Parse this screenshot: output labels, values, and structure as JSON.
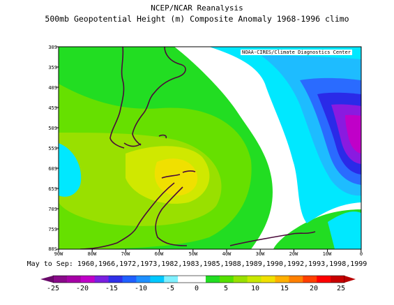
{
  "header": {
    "title": "NCEP/NCAR Reanalysis",
    "subtitle": "500mb Geopotential Height (m) Composite Anomaly 1968-1996 climo"
  },
  "credit": "NOAA-CIRES/Climate Diagnostics Center",
  "map": {
    "region": "South America / Antarctic Peninsula",
    "lat_labels": [
      "30S",
      "35S",
      "40S",
      "45S",
      "50S",
      "55S",
      "60S",
      "65S",
      "70S",
      "75S",
      "80S"
    ],
    "lon_labels": [
      "90W",
      "80W",
      "70W",
      "60W",
      "50W",
      "40W",
      "30W",
      "20W",
      "10W",
      "0"
    ]
  },
  "caption": "May to Sep: 1960,1966,1972,1973,1982,1983,1985,1988,1989,1990,1992,1993,1998,1999",
  "colorbar": {
    "labels": [
      "-25",
      "-20",
      "-15",
      "-10",
      "-5",
      "0",
      "5",
      "10",
      "15",
      "20",
      "25"
    ],
    "colors": [
      "#8a0a8a",
      "#a600a6",
      "#c000c8",
      "#7a20e0",
      "#3030e8",
      "#2060ff",
      "#1e90ff",
      "#00c8ff",
      "#80f0ff",
      "#ffffff",
      "#ffffff",
      "#22dd22",
      "#55e000",
      "#99e000",
      "#c8e800",
      "#f0e000",
      "#ffb000",
      "#ff8000",
      "#ff4000",
      "#ff0000",
      "#c80000"
    ],
    "accent_low": "#6a0a6a",
    "accent_high": "#b80000"
  }
}
